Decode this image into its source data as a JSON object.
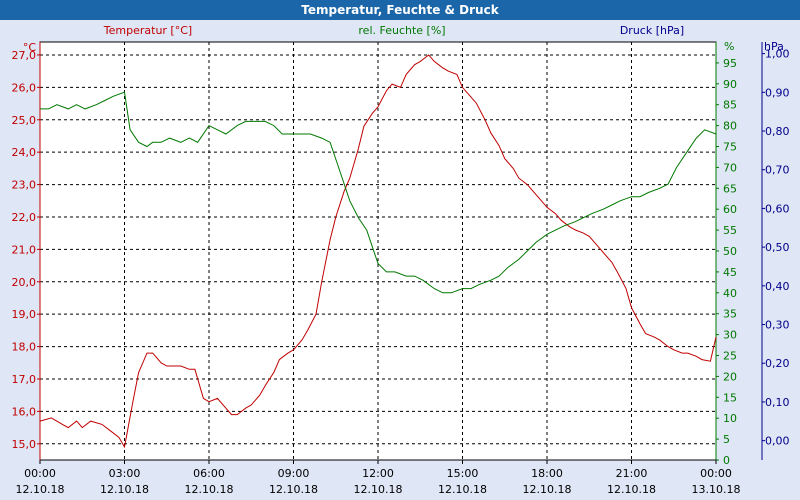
{
  "window": {
    "title": "Temperatur, Feuchte & Druck"
  },
  "chart_data": {
    "type": "line",
    "title": "Temperatur, Feuchte & Druck",
    "grid": true,
    "colors": {
      "temperature": "#c00000",
      "humidity": "#007800",
      "pressure": "#00008b",
      "background": "#ffffff",
      "frame": "#dfe6f6",
      "titlebar": "#1b66a8"
    },
    "x_axis": {
      "ticks": [
        {
          "h": 0,
          "time": "00:00",
          "date": "12.10.18"
        },
        {
          "h": 3,
          "time": "03:00",
          "date": "12.10.18"
        },
        {
          "h": 6,
          "time": "06:00",
          "date": "12.10.18"
        },
        {
          "h": 9,
          "time": "09:00",
          "date": "12.10.18"
        },
        {
          "h": 12,
          "time": "12:00",
          "date": "12.10.18"
        },
        {
          "h": 15,
          "time": "15:00",
          "date": "12.10.18"
        },
        {
          "h": 18,
          "time": "18:00",
          "date": "12.10.18"
        },
        {
          "h": 21,
          "time": "21:00",
          "date": "12.10.18"
        },
        {
          "h": 24,
          "time": "00:00",
          "date": "13.10.18"
        }
      ],
      "range": [
        0,
        24
      ]
    },
    "left_axis": {
      "label": "Temperatur [°C]",
      "unit": "°C",
      "range": [
        14.5,
        27.4
      ],
      "ticks": [
        15.0,
        16.0,
        17.0,
        18.0,
        19.0,
        20.0,
        21.0,
        22.0,
        23.0,
        24.0,
        25.0,
        26.0,
        27.0
      ],
      "tick_labels": [
        "15,0",
        "16,0",
        "17,0",
        "18,0",
        "19,0",
        "20,0",
        "21,0",
        "22,0",
        "23,0",
        "24,0",
        "25,0",
        "26,0",
        "27,0"
      ]
    },
    "mid_axis": {
      "label": "rel. Feuchte [%]",
      "unit": "%",
      "range": [
        0,
        100
      ],
      "ticks": [
        0,
        5,
        10,
        15,
        20,
        25,
        30,
        35,
        40,
        45,
        50,
        55,
        60,
        65,
        70,
        75,
        80,
        85,
        90,
        95
      ],
      "tick_labels": [
        "0",
        "5",
        "10",
        "15",
        "20",
        "25",
        "30",
        "35",
        "40",
        "45",
        "50",
        "55",
        "60",
        "65",
        "70",
        "75",
        "80",
        "85",
        "90",
        "95"
      ]
    },
    "right_axis": {
      "label": "Druck [hPa]",
      "unit": "hPa",
      "range": [
        -0.05,
        1.03
      ],
      "ticks": [
        0.0,
        0.1,
        0.2,
        0.3,
        0.4,
        0.5,
        0.6,
        0.7,
        0.8,
        0.9,
        1.0
      ],
      "tick_labels": [
        "0,00",
        "0,10",
        "0,20",
        "0,30",
        "0,40",
        "0,50",
        "0,60",
        "0,70",
        "0,80",
        "0,90",
        "1,00"
      ]
    },
    "series": [
      {
        "name": "Temperatur [°C]",
        "axis": "left",
        "x": [
          0,
          0.4,
          0.8,
          1.0,
          1.3,
          1.5,
          1.8,
          2.2,
          2.5,
          2.8,
          3.0,
          3.3,
          3.5,
          3.8,
          4.0,
          4.3,
          4.5,
          4.8,
          5.0,
          5.3,
          5.5,
          5.8,
          6.0,
          6.3,
          6.5,
          6.8,
          7.0,
          7.3,
          7.5,
          7.8,
          8.0,
          8.3,
          8.5,
          8.8,
          9.0,
          9.3,
          9.5,
          9.8,
          10.0,
          10.3,
          10.5,
          10.8,
          11.0,
          11.3,
          11.5,
          11.8,
          12.0,
          12.3,
          12.5,
          12.8,
          13.0,
          13.3,
          13.5,
          13.8,
          14.0,
          14.3,
          14.5,
          14.8,
          15.0,
          15.3,
          15.5,
          15.8,
          16.0,
          16.3,
          16.5,
          16.8,
          17.0,
          17.3,
          17.5,
          17.8,
          18.0,
          18.3,
          18.5,
          18.8,
          19.0,
          19.3,
          19.5,
          19.8,
          20.0,
          20.3,
          20.5,
          20.8,
          21.0,
          21.3,
          21.5,
          21.8,
          22.0,
          22.3,
          22.5,
          22.8,
          23.0,
          23.3,
          23.5,
          23.8,
          24.0
        ],
        "values": [
          15.7,
          15.8,
          15.6,
          15.5,
          15.7,
          15.5,
          15.7,
          15.6,
          15.4,
          15.2,
          14.9,
          16.3,
          17.2,
          17.8,
          17.8,
          17.5,
          17.4,
          17.4,
          17.4,
          17.3,
          17.3,
          16.4,
          16.3,
          16.4,
          16.2,
          15.9,
          15.9,
          16.1,
          16.2,
          16.5,
          16.8,
          17.2,
          17.6,
          17.8,
          17.9,
          18.2,
          18.5,
          19.0,
          20.0,
          21.3,
          22.0,
          22.8,
          23.2,
          24.1,
          24.8,
          25.2,
          25.4,
          25.9,
          26.1,
          26.0,
          26.4,
          26.7,
          26.8,
          27.0,
          26.8,
          26.6,
          26.5,
          26.4,
          26.0,
          25.7,
          25.5,
          25.0,
          24.6,
          24.2,
          23.8,
          23.5,
          23.2,
          23.0,
          22.8,
          22.5,
          22.3,
          22.1,
          21.9,
          21.7,
          21.6,
          21.5,
          21.4,
          21.1,
          20.9,
          20.6,
          20.3,
          19.8,
          19.2,
          18.7,
          18.4,
          18.3,
          18.2,
          18.0,
          17.9,
          17.8,
          17.8,
          17.7,
          17.6,
          17.55,
          18.3
        ],
        "color": "#c00000"
      },
      {
        "name": "rel. Feuchte [%]",
        "axis": "mid",
        "x": [
          0,
          0.3,
          0.6,
          1.0,
          1.3,
          1.6,
          2.0,
          2.3,
          2.6,
          3.0,
          3.2,
          3.5,
          3.8,
          4.0,
          4.3,
          4.6,
          5.0,
          5.3,
          5.6,
          6.0,
          6.3,
          6.6,
          7.0,
          7.3,
          7.6,
          8.0,
          8.3,
          8.6,
          9.0,
          9.3,
          9.6,
          10.0,
          10.3,
          10.6,
          11.0,
          11.3,
          11.6,
          12.0,
          12.3,
          12.6,
          13.0,
          13.3,
          13.6,
          14.0,
          14.3,
          14.6,
          15.0,
          15.3,
          15.6,
          16.0,
          16.3,
          16.6,
          17.0,
          17.3,
          17.6,
          18.0,
          18.3,
          18.6,
          19.0,
          19.3,
          19.6,
          20.0,
          20.3,
          20.6,
          21.0,
          21.3,
          21.6,
          22.0,
          22.3,
          22.6,
          23.0,
          23.3,
          23.6,
          24.0
        ],
        "values": [
          84,
          84,
          85,
          84,
          85,
          84,
          85,
          86,
          87,
          88,
          79,
          76,
          75,
          76,
          76,
          77,
          76,
          77,
          76,
          80,
          79,
          78,
          80,
          81,
          81,
          81,
          80,
          78,
          78,
          78,
          78,
          77,
          76,
          70,
          62,
          58,
          55,
          47,
          45,
          45,
          44,
          44,
          43,
          41,
          40,
          40,
          41,
          41,
          42,
          43,
          44,
          46,
          48,
          50,
          52,
          54,
          55,
          56,
          57,
          58,
          59,
          60,
          61,
          62,
          63,
          63,
          64,
          65,
          66,
          70,
          74,
          77,
          79,
          78
        ],
        "color": "#007800"
      }
    ]
  }
}
